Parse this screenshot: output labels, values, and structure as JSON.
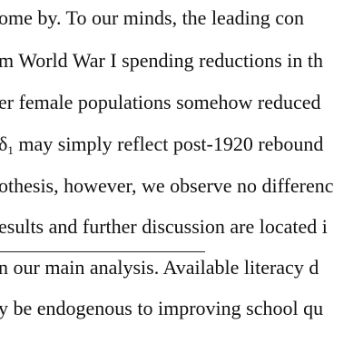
{
  "body_text": {
    "line1": "ome by.  To our minds, the leading con",
    "line2": "m World War I spending reductions in th",
    "line3": "er female populations somehow reduced",
    "line4_prefix": "δ",
    "line4_subscript": "1",
    "line4_rest": " may simply reflect post-1920 rebound",
    "line5": "othesis, however, we observe no differenc",
    "line6": "esults and further discussion are located i"
  },
  "footnote_text": {
    "line1": "n our main analysis.  Available literacy d",
    "line2": "y be endogenous to improving school qu"
  }
}
